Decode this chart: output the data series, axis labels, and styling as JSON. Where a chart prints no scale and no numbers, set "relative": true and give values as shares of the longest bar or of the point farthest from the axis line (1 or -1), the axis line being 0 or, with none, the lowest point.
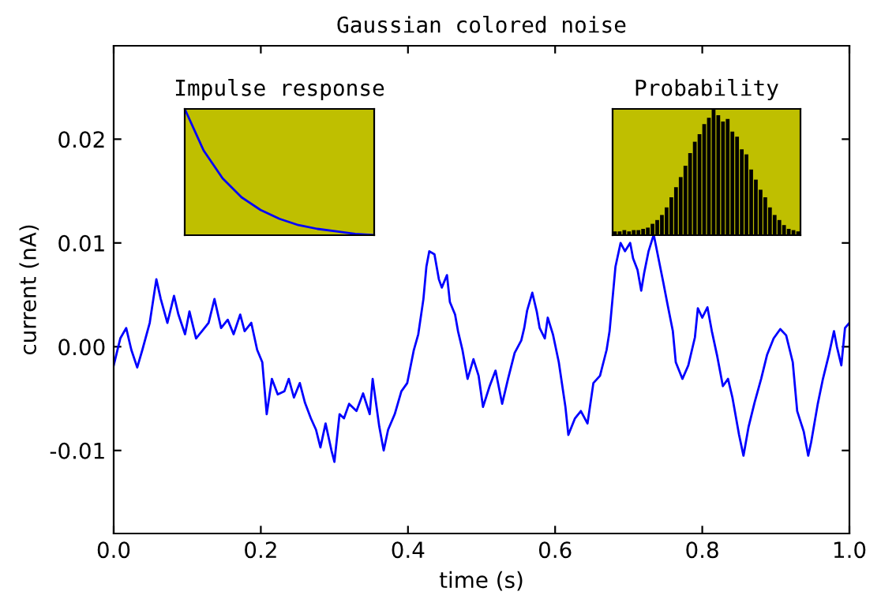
{
  "chart_data": [
    {
      "type": "line",
      "title": "Gaussian colored noise",
      "xlabel": "time (s)",
      "ylabel": "current (nA)",
      "color": "#0000ff",
      "grid": false,
      "x": [
        0,
        0.009,
        0.017,
        0.024,
        0.032,
        0.039,
        0.049,
        0.058,
        0.064,
        0.073,
        0.082,
        0.088,
        0.097,
        0.103,
        0.112,
        0.12,
        0.129,
        0.137,
        0.146,
        0.155,
        0.163,
        0.172,
        0.178,
        0.187,
        0.195,
        0.202,
        0.208,
        0.215,
        0.223,
        0.232,
        0.238,
        0.245,
        0.253,
        0.26,
        0.268,
        0.275,
        0.281,
        0.288,
        0.296,
        0.3,
        0.307,
        0.313,
        0.32,
        0.33,
        0.339,
        0.348,
        0.352,
        0.361,
        0.367,
        0.373,
        0.382,
        0.391,
        0.399,
        0.408,
        0.414,
        0.421,
        0.425,
        0.429,
        0.436,
        0.442,
        0.446,
        0.453,
        0.457,
        0.464,
        0.468,
        0.474,
        0.481,
        0.489,
        0.496,
        0.502,
        0.511,
        0.519,
        0.528,
        0.536,
        0.545,
        0.554,
        0.558,
        0.562,
        0.569,
        0.575,
        0.579,
        0.586,
        0.59,
        0.597,
        0.605,
        0.614,
        0.618,
        0.627,
        0.635,
        0.644,
        0.652,
        0.661,
        0.67,
        0.674,
        0.678,
        0.682,
        0.689,
        0.695,
        0.702,
        0.706,
        0.712,
        0.717,
        0.721,
        0.727,
        0.734,
        0.738,
        0.747,
        0.753,
        0.76,
        0.764,
        0.773,
        0.781,
        0.79,
        0.794,
        0.8,
        0.807,
        0.813,
        0.82,
        0.828,
        0.835,
        0.841,
        0.85,
        0.856,
        0.863,
        0.871,
        0.88,
        0.888,
        0.897,
        0.906,
        0.914,
        0.923,
        0.929,
        0.938,
        0.944,
        0.948,
        0.957,
        0.964,
        0.972,
        0.979,
        0.983,
        0.989,
        0.994,
        1.0
      ],
      "values": [
        -0.0018,
        0.0008,
        0.0018,
        -0.0003,
        -0.002,
        -0.0003,
        0.0023,
        0.0065,
        0.0046,
        0.0023,
        0.0049,
        0.0031,
        0.0012,
        0.0034,
        0.0008,
        0.0015,
        0.0023,
        0.0046,
        0.0018,
        0.0026,
        0.0012,
        0.0031,
        0.0015,
        0.0023,
        -0.0003,
        -0.0015,
        -0.0065,
        -0.0031,
        -0.0046,
        -0.0043,
        -0.0031,
        -0.0049,
        -0.0035,
        -0.0054,
        -0.0069,
        -0.008,
        -0.0097,
        -0.0074,
        -0.01,
        -0.0111,
        -0.0065,
        -0.0069,
        -0.0055,
        -0.0062,
        -0.0045,
        -0.0065,
        -0.0031,
        -0.0077,
        -0.01,
        -0.008,
        -0.0065,
        -0.0043,
        -0.0035,
        -0.0003,
        0.0012,
        0.0046,
        0.0077,
        0.0092,
        0.0089,
        0.0065,
        0.0057,
        0.0069,
        0.0043,
        0.0031,
        0.0015,
        -0.0003,
        -0.0031,
        -0.0012,
        -0.0028,
        -0.0058,
        -0.0038,
        -0.0023,
        -0.0055,
        -0.0031,
        -0.0006,
        0.0006,
        0.0018,
        0.0035,
        0.0052,
        0.0034,
        0.0018,
        0.0008,
        0.0028,
        0.0012,
        -0.0015,
        -0.0058,
        -0.0085,
        -0.0069,
        -0.0062,
        -0.0074,
        -0.0035,
        -0.0028,
        -0.0003,
        0.0015,
        0.0046,
        0.0077,
        0.01,
        0.0092,
        0.01,
        0.0085,
        0.0074,
        0.0054,
        0.0071,
        0.0092,
        0.0108,
        null,
        0.0062,
        0.004,
        0.0015,
        -0.0015,
        -0.0031,
        -0.0018,
        0.0009,
        0.0037,
        0.0028,
        0.0038,
        0.0015,
        -0.0008,
        -0.0038,
        -0.0031,
        -0.0049,
        -0.0085,
        -0.0105,
        -0.0077,
        -0.0054,
        -0.0031,
        -0.0008,
        0.0008,
        0.0017,
        0.0011,
        -0.0015,
        -0.0062,
        -0.0082,
        -0.0105,
        -0.0092,
        -0.0055,
        -0.0031,
        -0.0008,
        0.0015,
        0,
        -0.0018,
        0.0018,
        0.0023
      ],
      "xlim": [
        0,
        1
      ],
      "ylim": [
        -0.018,
        0.029
      ],
      "xticks": [
        {
          "value": 0,
          "label": "0.0"
        },
        0.2,
        0.4,
        0.6,
        0.8,
        {
          "value": 1,
          "label": "1.0"
        }
      ],
      "yticks": [
        {
          "value": -0.01,
          "label": "-0.01"
        },
        {
          "value": 0,
          "label": "0.00"
        },
        {
          "value": 0.01,
          "label": "0.01"
        },
        {
          "value": 0.02,
          "label": "0.02"
        }
      ]
    },
    {
      "type": "line",
      "title": "Impulse response",
      "relative": true,
      "color": "#0000ff",
      "categories": [
        null,
        null,
        null,
        null,
        null,
        null,
        null,
        null,
        null,
        null,
        null
      ],
      "values": [
        1,
        0.67,
        0.45,
        0.3,
        0.2,
        0.13,
        0.08,
        0.05,
        0.03,
        0.01,
        0
      ]
    },
    {
      "type": "bar",
      "title": "Probability",
      "relative": true,
      "color": "#000000",
      "categories": [
        null,
        null,
        null,
        null,
        null,
        null,
        null,
        null,
        null,
        null,
        null,
        null,
        null,
        null,
        null,
        null,
        null,
        null,
        null,
        null,
        null,
        null,
        null,
        null,
        null,
        null,
        null,
        null,
        null,
        null,
        null,
        null,
        null,
        null,
        null,
        null,
        null,
        null,
        null,
        null
      ],
      "values": [
        0.03,
        0.03,
        0.04,
        0.03,
        0.04,
        0.04,
        0.05,
        0.06,
        0.09,
        0.12,
        0.16,
        0.22,
        0.3,
        0.38,
        0.46,
        0.55,
        0.65,
        0.74,
        0.8,
        0.88,
        0.93,
        1,
        0.95,
        0.9,
        0.92,
        0.82,
        0.78,
        0.68,
        0.64,
        0.52,
        0.44,
        0.36,
        0.3,
        0.22,
        0.16,
        0.12,
        0.08,
        0.05,
        0.04,
        0.03
      ]
    }
  ]
}
